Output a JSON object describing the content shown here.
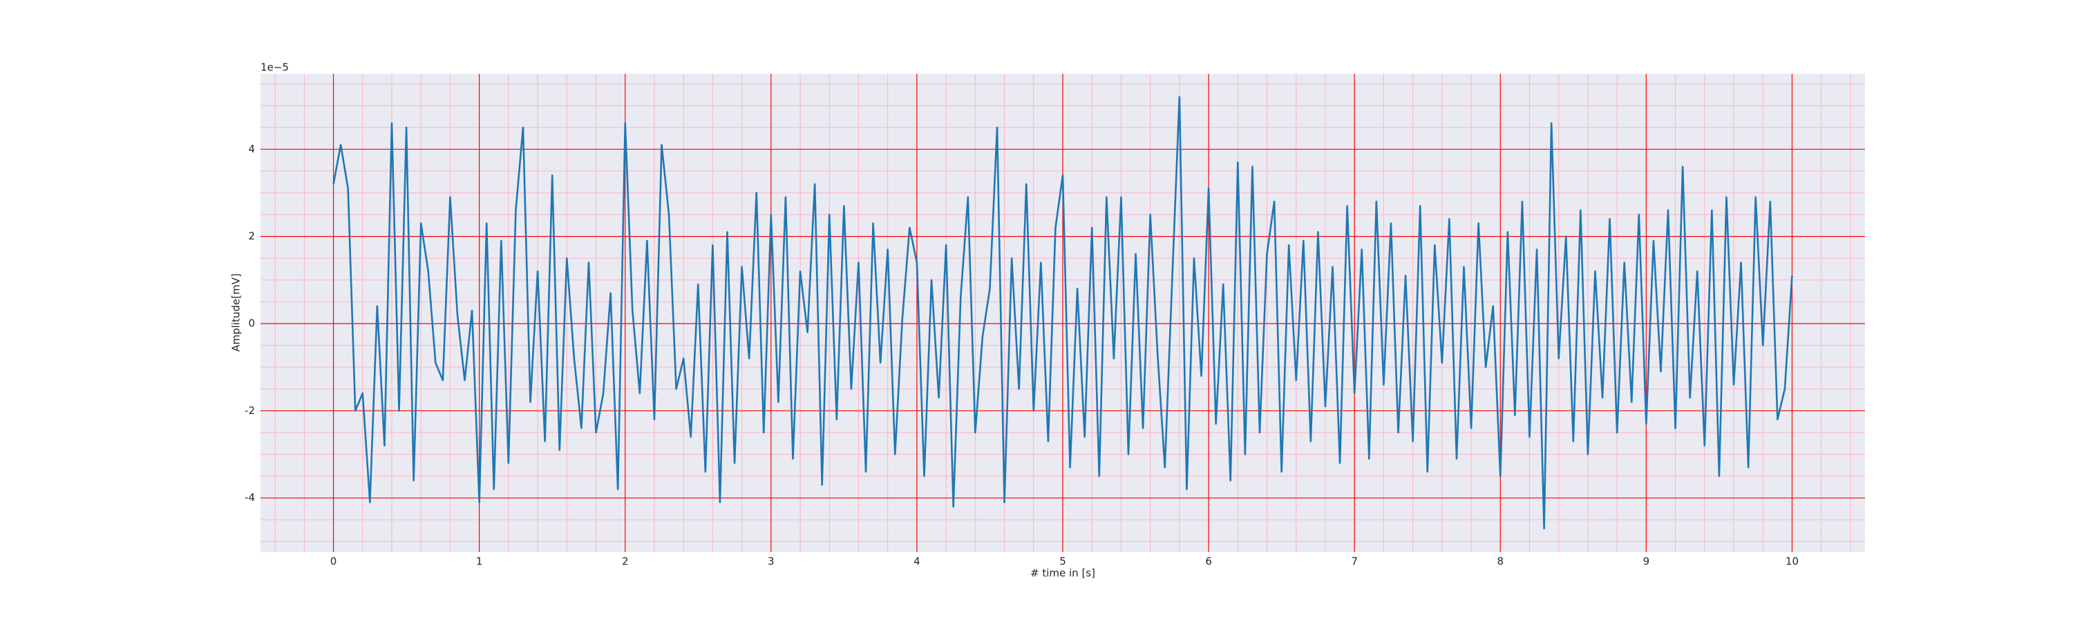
{
  "chart_data": {
    "type": "line",
    "offset_label": "1e−5",
    "xlabel": "# time in [s]",
    "ylabel": "Amplitude[mV]",
    "color": "#1f77b4",
    "background": "#eaeaf2",
    "grid": true,
    "grid_color": "#ff0000",
    "minor_grid_color": "#ffb3c0",
    "xlim": [
      -0.5,
      10.5
    ],
    "ylim": [
      -5.24,
      5.73
    ],
    "xticks": [
      0,
      1,
      2,
      3,
      4,
      5,
      6,
      7,
      8,
      9,
      10
    ],
    "yticks": [
      -4,
      -2,
      0,
      2,
      4
    ],
    "x_minor_ticks": [
      -0.4,
      -0.2,
      0.2,
      0.4,
      0.6,
      0.8,
      1.2,
      1.4,
      1.6,
      1.8,
      2.2,
      2.4,
      2.6,
      2.8,
      3.2,
      3.4,
      3.6,
      3.8,
      4.2,
      4.4,
      4.6,
      4.8,
      5.2,
      5.4,
      5.6,
      5.8,
      6.2,
      6.4,
      6.6,
      6.8,
      7.2,
      7.4,
      7.6,
      7.8,
      8.2,
      8.4,
      8.6,
      8.8,
      9.2,
      9.4,
      9.6,
      9.8,
      10.2,
      10.4
    ],
    "y_minor_ticks": [
      -5,
      -4.5,
      -3.5,
      -3,
      -2.5,
      -1.5,
      -1,
      -0.5,
      0.5,
      1,
      1.5,
      2.5,
      3,
      3.5,
      4.5,
      5,
      5.5
    ],
    "x": [
      0,
      0.05,
      0.1,
      0.15,
      0.2,
      0.25,
      0.3,
      0.35,
      0.4,
      0.45,
      0.5,
      0.55,
      0.6,
      0.65,
      0.7,
      0.75,
      0.8,
      0.85,
      0.9,
      0.95,
      1,
      1.05,
      1.1,
      1.15,
      1.2,
      1.25,
      1.3,
      1.35,
      1.4,
      1.45,
      1.5,
      1.55,
      1.6,
      1.65,
      1.7,
      1.75,
      1.8,
      1.85,
      1.9,
      1.95,
      2,
      2.05,
      2.1,
      2.15,
      2.2,
      2.25,
      2.3,
      2.35,
      2.4,
      2.45,
      2.5,
      2.55,
      2.6,
      2.65,
      2.7,
      2.75,
      2.8,
      2.85,
      2.9,
      2.95,
      3,
      3.05,
      3.1,
      3.15,
      3.2,
      3.25,
      3.3,
      3.35,
      3.4,
      3.45,
      3.5,
      3.55,
      3.6,
      3.65,
      3.7,
      3.75,
      3.8,
      3.85,
      3.9,
      3.95,
      4,
      4.05,
      4.1,
      4.15,
      4.2,
      4.25,
      4.3,
      4.35,
      4.4,
      4.45,
      4.5,
      4.55,
      4.6,
      4.65,
      4.7,
      4.75,
      4.8,
      4.85,
      4.9,
      4.95,
      5,
      5.05,
      5.1,
      5.15,
      5.2,
      5.25,
      5.3,
      5.35,
      5.4,
      5.45,
      5.5,
      5.55,
      5.6,
      5.65,
      5.7,
      5.75,
      5.8,
      5.85,
      5.9,
      5.95,
      6,
      6.05,
      6.1,
      6.15,
      6.2,
      6.25,
      6.3,
      6.35,
      6.4,
      6.45,
      6.5,
      6.55,
      6.6,
      6.65,
      6.7,
      6.75,
      6.8,
      6.85,
      6.9,
      6.95,
      7,
      7.05,
      7.1,
      7.15,
      7.2,
      7.25,
      7.3,
      7.35,
      7.4,
      7.45,
      7.5,
      7.55,
      7.6,
      7.65,
      7.7,
      7.75,
      7.8,
      7.85,
      7.9,
      7.95,
      8,
      8.05,
      8.1,
      8.15,
      8.2,
      8.25,
      8.3,
      8.35,
      8.4,
      8.45,
      8.5,
      8.55,
      8.6,
      8.65,
      8.7,
      8.75,
      8.8,
      8.85,
      8.9,
      8.95,
      9,
      9.05,
      9.1,
      9.15,
      9.2,
      9.25,
      9.3,
      9.35,
      9.4,
      9.45,
      9.5,
      9.55,
      9.6,
      9.65,
      9.7,
      9.75,
      9.8,
      9.85,
      9.9,
      9.95,
      10
    ],
    "values": [
      3.2,
      4.1,
      3.1,
      -2.0,
      -1.6,
      -4.1,
      0.4,
      -2.8,
      4.6,
      -2.0,
      4.5,
      -3.6,
      2.3,
      1.2,
      -0.9,
      -1.3,
      2.9,
      0.2,
      -1.3,
      0.3,
      -4.1,
      2.3,
      -3.8,
      1.9,
      -3.2,
      2.6,
      4.5,
      -1.8,
      1.2,
      -2.7,
      3.4,
      -2.9,
      1.5,
      -0.8,
      -2.4,
      1.4,
      -2.5,
      -1.6,
      0.7,
      -3.8,
      4.6,
      0.3,
      -1.6,
      1.9,
      -2.2,
      4.1,
      2.5,
      -1.5,
      -0.8,
      -2.6,
      0.9,
      -3.4,
      1.8,
      -4.1,
      2.1,
      -3.2,
      1.3,
      -0.8,
      3.0,
      -2.5,
      2.5,
      -1.8,
      2.9,
      -3.1,
      1.2,
      -0.2,
      3.2,
      -3.7,
      2.5,
      -2.2,
      2.7,
      -1.5,
      1.4,
      -3.4,
      2.3,
      -0.9,
      1.7,
      -3.0,
      0.1,
      2.2,
      1.4,
      -3.5,
      1.0,
      -1.7,
      1.8,
      -4.2,
      0.6,
      2.9,
      -2.5,
      -0.3,
      0.8,
      4.5,
      -4.1,
      1.5,
      -1.5,
      3.2,
      -2.0,
      1.4,
      -2.7,
      2.2,
      3.4,
      -3.3,
      0.8,
      -2.6,
      2.2,
      -3.5,
      2.9,
      -0.8,
      2.9,
      -3.0,
      1.6,
      -2.4,
      2.5,
      -0.7,
      -3.3,
      1.0,
      5.2,
      -3.8,
      1.5,
      -1.2,
      3.1,
      -2.3,
      0.9,
      -3.6,
      3.7,
      -3.0,
      3.6,
      -2.5,
      1.6,
      2.8,
      -3.4,
      1.8,
      -1.3,
      1.9,
      -2.7,
      2.1,
      -1.9,
      1.3,
      -3.2,
      2.7,
      -1.6,
      1.7,
      -3.1,
      2.8,
      -1.4,
      2.3,
      -2.5,
      1.1,
      -2.7,
      2.7,
      -3.4,
      1.8,
      -0.9,
      2.4,
      -3.1,
      1.3,
      -2.4,
      2.3,
      -1.0,
      0.4,
      -3.5,
      2.1,
      -2.1,
      2.8,
      -2.6,
      1.7,
      -4.7,
      4.6,
      -0.8,
      2.0,
      -2.7,
      2.6,
      -3.0,
      1.2,
      -1.7,
      2.4,
      -2.5,
      1.4,
      -1.8,
      2.5,
      -2.3,
      1.9,
      -1.1,
      2.6,
      -2.4,
      3.6,
      -1.7,
      1.2,
      -2.8,
      2.6,
      -3.5,
      2.9,
      -1.4,
      1.4,
      -3.3,
      2.9,
      -0.5,
      2.8,
      -2.2,
      -1.5,
      1.1
    ]
  }
}
